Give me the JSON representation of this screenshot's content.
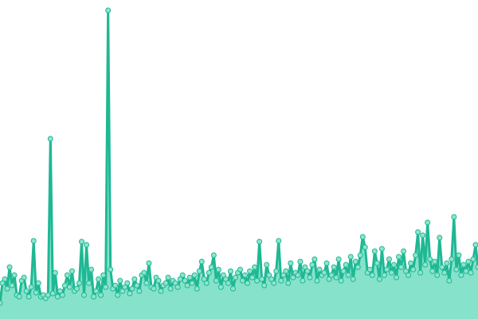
{
  "chart_data": {
    "type": "area",
    "line_color": "#1fb894",
    "fill_color": "#86e2cb",
    "marker_fill": "#8fe4cd",
    "ylim": [
      0,
      400
    ],
    "xlim": [
      0,
      199
    ],
    "values": [
      20,
      45,
      50,
      38,
      65,
      42,
      55,
      30,
      28,
      48,
      52,
      35,
      28,
      40,
      98,
      33,
      45,
      28,
      30,
      26,
      30,
      226,
      32,
      58,
      28,
      35,
      30,
      42,
      55,
      40,
      60,
      35,
      38,
      45,
      97,
      30,
      93,
      45,
      62,
      28,
      35,
      50,
      30,
      55,
      40,
      387,
      62,
      38,
      42,
      30,
      48,
      35,
      40,
      45,
      32,
      38,
      50,
      42,
      35,
      55,
      58,
      45,
      70,
      40,
      38,
      52,
      48,
      35,
      42,
      45,
      52,
      38,
      48,
      45,
      40,
      50,
      55,
      48,
      42,
      52,
      45,
      55,
      38,
      60,
      72,
      50,
      45,
      58,
      65,
      80,
      48,
      62,
      40,
      55,
      50,
      45,
      60,
      38,
      52,
      58,
      62,
      48,
      55,
      45,
      60,
      52,
      65,
      48,
      97,
      50,
      42,
      68,
      55,
      50,
      45,
      60,
      98,
      48,
      55,
      60,
      45,
      70,
      52,
      58,
      55,
      72,
      48,
      65,
      60,
      52,
      68,
      75,
      48,
      62,
      55,
      58,
      70,
      50,
      55,
      65,
      52,
      75,
      48,
      60,
      68,
      55,
      78,
      50,
      72,
      65,
      80,
      103,
      90,
      58,
      62,
      55,
      85,
      70,
      50,
      88,
      55,
      62,
      75,
      58,
      68,
      52,
      78,
      65,
      85,
      60,
      55,
      70,
      62,
      80,
      109,
      58,
      105,
      68,
      121,
      75,
      60,
      72,
      55,
      102,
      65,
      58,
      70,
      48,
      75,
      128,
      62,
      80,
      55,
      68,
      60,
      72,
      58,
      75,
      93,
      65
    ]
  }
}
